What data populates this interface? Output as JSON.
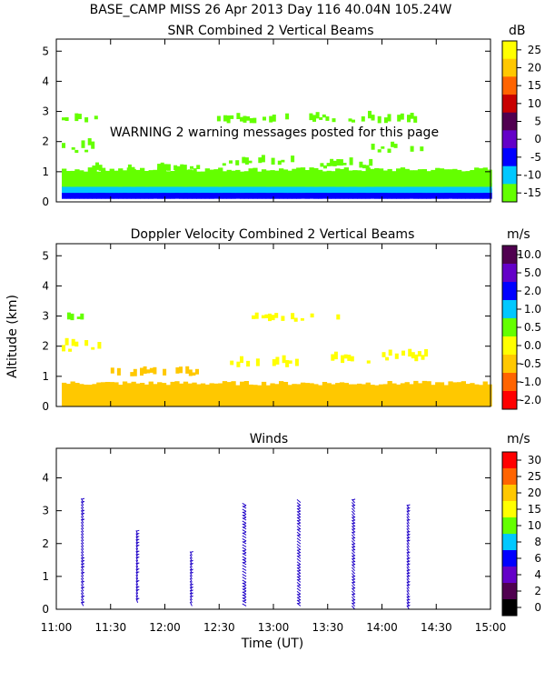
{
  "header": {
    "line1": "BASE_CAMP MISS  26 Apr 2013 Day 116 40.04N 105.24W",
    "warning": "WARNING  2 warning messages posted for this page"
  },
  "x_axis": {
    "label": "Time (UT)",
    "range_hours": [
      11.0,
      15.0
    ],
    "ticks": [
      {
        "t": 11.0,
        "label": "11:00"
      },
      {
        "t": 11.5,
        "label": "11:30"
      },
      {
        "t": 12.0,
        "label": "12:00"
      },
      {
        "t": 12.5,
        "label": "12:30"
      },
      {
        "t": 13.0,
        "label": "13:00"
      },
      {
        "t": 13.5,
        "label": "13:30"
      },
      {
        "t": 14.0,
        "label": "14:00"
      },
      {
        "t": 14.5,
        "label": "14:30"
      },
      {
        "t": 15.0,
        "label": "15:00"
      }
    ]
  },
  "y_axis": {
    "label": "Altitude (km)"
  },
  "chart_data": [
    {
      "type": "heatmap",
      "title": "SNR Combined 2 Vertical Beams",
      "unit": "dB",
      "xlabel": "Time (UT)",
      "ylabel": "Altitude (km)",
      "ylim": [
        0,
        5.4
      ],
      "yticks": [
        "0",
        "1",
        "2",
        "3",
        "4",
        "5"
      ],
      "colorbar": {
        "labels": [
          "25",
          "20",
          "15",
          "10",
          "5",
          "0",
          "-5",
          "-10",
          "-15"
        ],
        "colors": [
          "#ffff00",
          "#ffc800",
          "#ff6400",
          "#c80000",
          "#500050",
          "#6400c8",
          "#0000ff",
          "#00c8ff",
          "#64ff00"
        ]
      },
      "layers": [
        {
          "name": "near-surface high SNR",
          "color": "#0000ff",
          "alt_range_km": [
            0.1,
            0.35
          ]
        },
        {
          "name": "surface layer",
          "color": "#00c8ff",
          "alt_range_km": [
            0.3,
            0.6
          ]
        },
        {
          "name": "boundary layer",
          "color": "#64ff00",
          "alt_range_km": [
            0.5,
            1.0
          ]
        }
      ],
      "cloud_patches": [
        {
          "t": [
            11.05,
            11.35
          ],
          "alt": [
            2.6,
            3.2
          ],
          "color": "#64ff00"
        },
        {
          "t": [
            11.05,
            11.35
          ],
          "alt": [
            1.6,
            2.3
          ],
          "color": "#64ff00"
        },
        {
          "t": [
            11.3,
            11.5
          ],
          "alt": [
            1.0,
            1.5
          ],
          "color": "#64ff00"
        },
        {
          "t": [
            11.6,
            12.3
          ],
          "alt": [
            1.0,
            1.3
          ],
          "color": "#64ff00"
        },
        {
          "t": [
            12.45,
            13.2
          ],
          "alt": [
            2.6,
            3.0
          ],
          "color": "#64ff00"
        },
        {
          "t": [
            12.5,
            13.2
          ],
          "alt": [
            1.2,
            1.5
          ],
          "color": "#64ff00"
        },
        {
          "t": [
            13.3,
            13.9
          ],
          "alt": [
            2.6,
            3.1
          ],
          "color": "#64ff00"
        },
        {
          "t": [
            13.4,
            13.9
          ],
          "alt": [
            1.1,
            1.4
          ],
          "color": "#64ff00"
        },
        {
          "t": [
            13.9,
            14.35
          ],
          "alt": [
            1.6,
            2.2
          ],
          "color": "#64ff00"
        },
        {
          "t": [
            13.9,
            14.35
          ],
          "alt": [
            2.6,
            3.0
          ],
          "color": "#64ff00"
        }
      ]
    },
    {
      "type": "heatmap",
      "title": "Doppler Velocity Combined 2 Vertical Beams",
      "unit": "m/s",
      "xlabel": "Time (UT)",
      "ylabel": "Altitude (km)",
      "ylim": [
        0,
        5.4
      ],
      "yticks": [
        "0",
        "1",
        "2",
        "3",
        "4",
        "5"
      ],
      "colorbar": {
        "labels": [
          "10.0",
          "5.0",
          "2.0",
          "1.0",
          "0.5",
          "0.0",
          "-0.5",
          "-1.0",
          "-2.0"
        ],
        "colors": [
          "#500050",
          "#6400c8",
          "#0000ff",
          "#00c8ff",
          "#64ff00",
          "#ffff00",
          "#ffc800",
          "#ff6400",
          "#ff0000"
        ]
      },
      "layers": [
        {
          "name": "boundary layer",
          "color": "#ffc800",
          "alt_range_km": [
            0.0,
            0.7
          ]
        }
      ],
      "cloud_patches": [
        {
          "t": [
            11.05,
            11.35
          ],
          "alt": [
            0.0,
            1.2
          ],
          "color": "#ffc800"
        },
        {
          "t": [
            11.05,
            11.4
          ],
          "alt": [
            1.8,
            2.4
          ],
          "color": "#ffff00"
        },
        {
          "t": [
            11.1,
            11.3
          ],
          "alt": [
            2.7,
            3.2
          ],
          "color": "#64ff00"
        },
        {
          "t": [
            11.5,
            12.3
          ],
          "alt": [
            1.0,
            1.3
          ],
          "color": "#ffc800"
        },
        {
          "t": [
            12.6,
            13.2
          ],
          "alt": [
            1.3,
            1.7
          ],
          "color": "#ffff00"
        },
        {
          "t": [
            12.8,
            13.6
          ],
          "alt": [
            2.8,
            3.2
          ],
          "color": "#ffff00"
        },
        {
          "t": [
            13.5,
            13.9
          ],
          "alt": [
            1.4,
            1.9
          ],
          "color": "#ffff00"
        },
        {
          "t": [
            14.0,
            14.4
          ],
          "alt": [
            1.5,
            2.0
          ],
          "color": "#ffff00"
        }
      ]
    },
    {
      "type": "scatter",
      "title": "Winds",
      "unit": "m/s",
      "xlabel": "Time (UT)",
      "ylabel": "Altitude (km)",
      "ylim": [
        0,
        4.9
      ],
      "yticks": [
        "0",
        "1",
        "2",
        "3",
        "4"
      ],
      "colorbar": {
        "labels": [
          "30",
          "25",
          "20",
          "15",
          "10",
          "8",
          "6",
          "4",
          "2",
          "0"
        ],
        "colors": [
          "#ff0000",
          "#ff6400",
          "#ffc800",
          "#ffff00",
          "#64ff00",
          "#00c8ff",
          "#0000ff",
          "#6400c8",
          "#500050",
          "#000000"
        ]
      },
      "profiles": [
        {
          "t": 11.25,
          "alt_min": 0.1,
          "alt_max": 3.3,
          "dir_deg": 330,
          "speed": 4
        },
        {
          "t": 11.75,
          "alt_min": 0.2,
          "alt_max": 2.3,
          "dir_deg": 340,
          "speed": 4
        },
        {
          "t": 12.25,
          "alt_min": 0.1,
          "alt_max": 1.7,
          "dir_deg": 335,
          "speed": 4
        },
        {
          "t": 12.75,
          "alt_min": 0.1,
          "alt_max": 3.2,
          "dir_deg": 300,
          "speed": 4
        },
        {
          "t": 13.25,
          "alt_min": 0.1,
          "alt_max": 3.3,
          "dir_deg": 310,
          "speed": 4
        },
        {
          "t": 13.75,
          "alt_min": 0.0,
          "alt_max": 3.3,
          "dir_deg": 320,
          "speed": 4
        },
        {
          "t": 14.25,
          "alt_min": 0.0,
          "alt_max": 3.1,
          "dir_deg": 330,
          "speed": 4
        }
      ]
    }
  ]
}
